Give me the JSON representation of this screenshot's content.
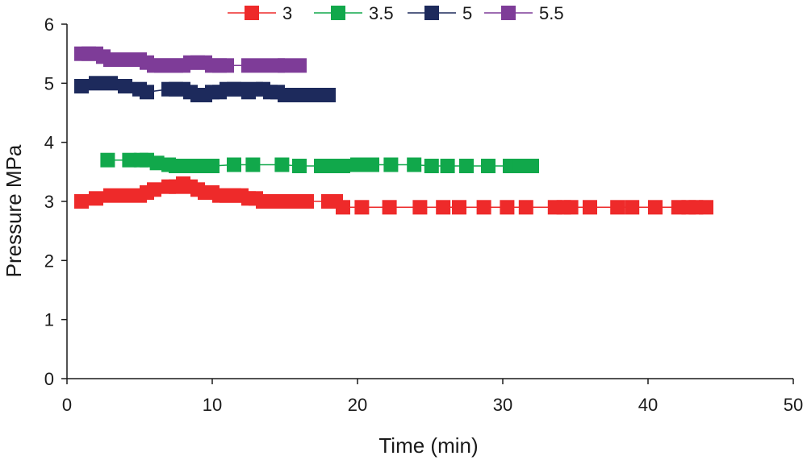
{
  "chart_data": {
    "type": "scatter",
    "title": "",
    "xlabel": "Time (min)",
    "ylabel": "Pressure MPa",
    "xlim": [
      0,
      50
    ],
    "ylim": [
      0,
      6
    ],
    "xticks": [
      0,
      10,
      20,
      30,
      40,
      50
    ],
    "yticks": [
      0,
      1,
      2,
      3,
      4,
      5,
      6
    ],
    "xtick_labels": [
      "0",
      "10",
      "20",
      "30",
      "40",
      "50"
    ],
    "ytick_labels": [
      "0",
      "1",
      "2",
      "3",
      "4",
      "5",
      "6"
    ],
    "legend_position": "top",
    "grid": false,
    "series": [
      {
        "name": "3",
        "color": "#ee2a2a",
        "x": [
          1,
          2,
          3,
          4,
          5,
          5.5,
          6,
          7,
          7.5,
          8,
          8.5,
          9,
          9.5,
          10,
          10.5,
          11,
          11.5,
          12,
          12.5,
          13,
          13.5,
          14,
          14.5,
          15,
          15.5,
          16,
          16.5,
          18,
          18.5,
          19,
          20.3,
          22.2,
          24.3,
          25.9,
          27,
          28.7,
          30.3,
          31.6,
          33.6,
          34.2,
          34.7,
          36,
          37.9,
          38.9,
          40.5,
          42.1,
          42.8,
          43.3,
          44
        ],
        "y": [
          3.0,
          3.05,
          3.1,
          3.1,
          3.1,
          3.15,
          3.2,
          3.25,
          3.25,
          3.3,
          3.25,
          3.2,
          3.15,
          3.15,
          3.1,
          3.1,
          3.1,
          3.1,
          3.05,
          3.05,
          3.0,
          3.0,
          3.0,
          3.0,
          3.0,
          3.0,
          3.0,
          3.0,
          3.0,
          2.9,
          2.9,
          2.9,
          2.9,
          2.9,
          2.9,
          2.9,
          2.9,
          2.9,
          2.9,
          2.9,
          2.9,
          2.9,
          2.9,
          2.9,
          2.9,
          2.9,
          2.9,
          2.9,
          2.9
        ]
      },
      {
        "name": "3.5",
        "color": "#11a84b",
        "x": [
          2.8,
          4.3,
          5.1,
          5.5,
          6.2,
          7,
          7.5,
          8,
          8.5,
          9,
          9.5,
          10,
          11.5,
          12.8,
          14.8,
          16,
          17.5,
          18.5,
          19,
          20,
          21,
          22.3,
          23.9,
          25.1,
          26.2,
          27.5,
          29,
          30.5,
          31.2,
          32
        ],
        "y": [
          3.7,
          3.7,
          3.7,
          3.7,
          3.65,
          3.62,
          3.6,
          3.6,
          3.6,
          3.6,
          3.6,
          3.6,
          3.62,
          3.62,
          3.62,
          3.6,
          3.6,
          3.6,
          3.6,
          3.62,
          3.62,
          3.62,
          3.62,
          3.6,
          3.6,
          3.6,
          3.6,
          3.6,
          3.6,
          3.6
        ]
      },
      {
        "name": "5",
        "color": "#1d2a5c",
        "x": [
          1,
          2,
          3,
          4,
          5,
          5.5,
          7,
          7.5,
          8,
          8.5,
          9,
          9.5,
          10,
          10.5,
          11,
          11.5,
          12,
          12.5,
          13,
          13.5,
          14,
          14.5,
          15,
          16,
          17,
          18
        ],
        "y": [
          4.95,
          5.0,
          5.0,
          4.95,
          4.9,
          4.85,
          4.9,
          4.9,
          4.9,
          4.85,
          4.8,
          4.8,
          4.85,
          4.85,
          4.9,
          4.9,
          4.9,
          4.85,
          4.9,
          4.9,
          4.85,
          4.85,
          4.8,
          4.8,
          4.8,
          4.8
        ]
      },
      {
        "name": "5.5",
        "color": "#7e3c98",
        "x": [
          1,
          1.5,
          2,
          2.5,
          3,
          3.5,
          4,
          4.5,
          5,
          5.5,
          6,
          6.5,
          7,
          7.5,
          8,
          8.5,
          9,
          9.5,
          10,
          10.5,
          11,
          12.5,
          13.5,
          14.5,
          15,
          16
        ],
        "y": [
          5.5,
          5.5,
          5.5,
          5.45,
          5.4,
          5.4,
          5.4,
          5.4,
          5.4,
          5.35,
          5.3,
          5.3,
          5.3,
          5.3,
          5.3,
          5.35,
          5.35,
          5.35,
          5.3,
          5.3,
          5.3,
          5.3,
          5.3,
          5.3,
          5.3,
          5.3
        ]
      }
    ]
  }
}
